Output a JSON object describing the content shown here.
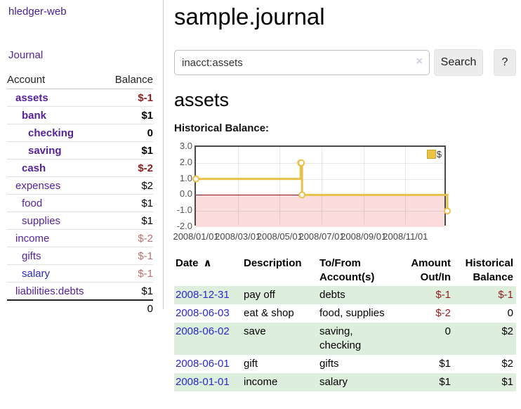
{
  "app": {
    "brand": "hledger-web",
    "nav_journal": "Journal"
  },
  "sidebar": {
    "accounts_header": {
      "account": "Account",
      "balance": "Balance"
    },
    "accounts": [
      {
        "name": "assets",
        "depth": 1,
        "bold": true,
        "link": "purple",
        "balance": "$-1",
        "balance_style": "neg-strong"
      },
      {
        "name": "bank",
        "depth": 2,
        "bold": true,
        "link": "purple",
        "balance": "$1",
        "balance_style": "plain"
      },
      {
        "name": "checking",
        "depth": 3,
        "bold": true,
        "link": "purple",
        "balance": "0",
        "balance_style": "plain"
      },
      {
        "name": "saving",
        "depth": 3,
        "bold": true,
        "link": "purple",
        "balance": "$1",
        "balance_style": "plain"
      },
      {
        "name": "cash",
        "depth": 2,
        "bold": true,
        "link": "purple",
        "balance": "$-2",
        "balance_style": "neg-strong"
      },
      {
        "name": "expenses",
        "depth": 1,
        "bold": false,
        "link": "purple",
        "balance": "$2",
        "balance_style": "plain"
      },
      {
        "name": "food",
        "depth": 2,
        "bold": false,
        "link": "purple",
        "balance": "$1",
        "balance_style": "plain"
      },
      {
        "name": "supplies",
        "depth": 2,
        "bold": false,
        "link": "purple",
        "balance": "$1",
        "balance_style": "plain"
      },
      {
        "name": "income",
        "depth": 1,
        "bold": false,
        "link": "purple",
        "balance": "$-2",
        "balance_style": "neg-muted"
      },
      {
        "name": "gifts",
        "depth": 2,
        "bold": false,
        "link": "purple",
        "balance": "$-1",
        "balance_style": "neg-muted"
      },
      {
        "name": "salary",
        "depth": 2,
        "bold": false,
        "link": "blue",
        "balance": "$-1",
        "balance_style": "neg-muted"
      },
      {
        "name": "liabilities:debts",
        "depth": 1,
        "bold": false,
        "link": "purple",
        "balance": "$1",
        "balance_style": "plain"
      }
    ],
    "total": "0"
  },
  "header": {
    "title": "sample.journal"
  },
  "search": {
    "value": "inacct:assets",
    "clear_icon": "×",
    "button_label": "Search",
    "help_label": "?"
  },
  "account_page": {
    "heading": "assets",
    "chart_label": "Historical Balance:"
  },
  "chart_data": {
    "type": "line",
    "style": "step-after",
    "title": "Historical Balance",
    "ylim": [
      -2,
      3
    ],
    "yticks": [
      "3.0",
      "2.0",
      "1.0",
      "0.0",
      "-1.0",
      "-2.0"
    ],
    "xticks": [
      "2008/01/01",
      "2008/03/01",
      "2008/05/01",
      "2008/07/01",
      "2008/09/01",
      "2008/11/01"
    ],
    "x_range": [
      "2008-01-01",
      "2009-01-01"
    ],
    "grid": true,
    "negative_region_color": "#fadcdc",
    "zero_line_color": "#8d1212",
    "series": [
      {
        "name": "$",
        "color": "#e8c04a",
        "marker": "circle",
        "points": [
          {
            "date": "2008-01-01",
            "value": 1
          },
          {
            "date": "2008-06-01",
            "value": 2
          },
          {
            "date": "2008-06-02",
            "value": 2
          },
          {
            "date": "2008-06-03",
            "value": 0
          },
          {
            "date": "2008-12-31",
            "value": -1
          }
        ]
      }
    ],
    "legend": {
      "position": "top-right",
      "label": "$",
      "swatch_color": "#eac442"
    }
  },
  "register": {
    "columns": {
      "date": "Date",
      "sort_icon": "∧",
      "description": "Description",
      "accounts": "To/From Account(s)",
      "amount": "Amount Out/In",
      "balance": "Historical Balance"
    },
    "rows": [
      {
        "date": "2008-12-31",
        "description": "pay off",
        "accounts": "debts",
        "amount": "$-1",
        "amount_neg": true,
        "balance": "$-1",
        "balance_neg": true
      },
      {
        "date": "2008-06-03",
        "description": "eat & shop",
        "accounts": "food, supplies",
        "amount": "$-2",
        "amount_neg": true,
        "balance": "0",
        "balance_neg": false
      },
      {
        "date": "2008-06-02",
        "description": "save",
        "accounts": "saving, checking",
        "amount": "0",
        "amount_neg": false,
        "balance": "$2",
        "balance_neg": false
      },
      {
        "date": "2008-06-01",
        "description": "gift",
        "accounts": "gifts",
        "amount": "$1",
        "amount_neg": false,
        "balance": "$2",
        "balance_neg": false
      },
      {
        "date": "2008-01-01",
        "description": "income",
        "accounts": "salary",
        "amount": "$1",
        "amount_neg": false,
        "balance": "$1",
        "balance_neg": false
      }
    ]
  },
  "colors": {
    "purple_link": "#55229d",
    "blue_link": "#2929cc",
    "negative_strong": "#8f1d1d",
    "negative_muted": "#b96f6f",
    "row_stripe_green": "#deeedd",
    "chart_gold": "#e8c04a",
    "chart_pink": "#fadcdc",
    "chart_zero_red": "#8d1212"
  }
}
